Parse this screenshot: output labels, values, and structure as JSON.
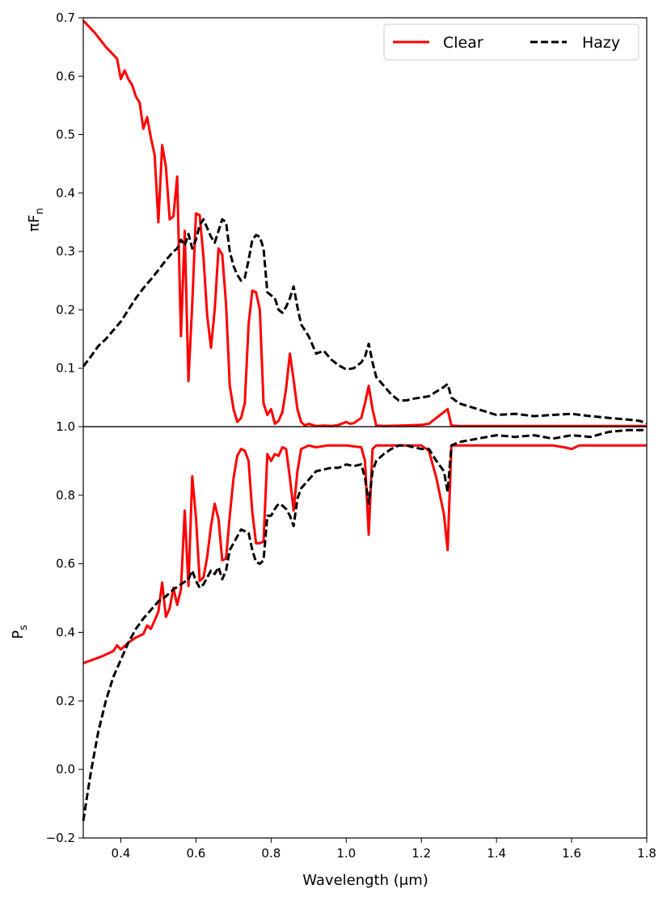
{
  "chart_data": [
    {
      "type": "line",
      "ylabel": "πF",
      "ylabel_sub": "n",
      "xlim": [
        0.3,
        1.8
      ],
      "ylim": [
        0.0,
        0.7
      ],
      "yticks": [
        "0.1",
        "0.2",
        "0.3",
        "0.4",
        "0.5",
        "0.6",
        "0.7"
      ],
      "ytick_values": [
        0.1,
        0.2,
        0.3,
        0.4,
        0.5,
        0.6,
        0.7
      ],
      "legend": "upper-right",
      "series": [
        {
          "name": "Clear",
          "color": "#ff0000",
          "style": "solid",
          "x": [
            0.3,
            0.33,
            0.36,
            0.39,
            0.4,
            0.41,
            0.42,
            0.43,
            0.44,
            0.45,
            0.46,
            0.47,
            0.48,
            0.49,
            0.5,
            0.51,
            0.52,
            0.53,
            0.54,
            0.55,
            0.56,
            0.57,
            0.58,
            0.59,
            0.6,
            0.61,
            0.62,
            0.63,
            0.64,
            0.65,
            0.66,
            0.67,
            0.68,
            0.69,
            0.7,
            0.71,
            0.72,
            0.73,
            0.74,
            0.75,
            0.76,
            0.77,
            0.78,
            0.79,
            0.8,
            0.81,
            0.82,
            0.83,
            0.84,
            0.85,
            0.86,
            0.87,
            0.88,
            0.89,
            0.9,
            0.92,
            0.94,
            0.96,
            0.98,
            1.0,
            1.01,
            1.02,
            1.04,
            1.05,
            1.06,
            1.07,
            1.08,
            1.1,
            1.2,
            1.22,
            1.27,
            1.28,
            1.3,
            1.4,
            1.6,
            1.8
          ],
          "y": [
            0.695,
            0.675,
            0.65,
            0.63,
            0.595,
            0.61,
            0.595,
            0.585,
            0.565,
            0.555,
            0.51,
            0.53,
            0.495,
            0.465,
            0.35,
            0.482,
            0.445,
            0.355,
            0.36,
            0.428,
            0.155,
            0.335,
            0.078,
            0.21,
            0.365,
            0.362,
            0.29,
            0.19,
            0.135,
            0.2,
            0.305,
            0.295,
            0.21,
            0.07,
            0.03,
            0.008,
            0.015,
            0.04,
            0.175,
            0.233,
            0.23,
            0.2,
            0.04,
            0.02,
            0.03,
            0.005,
            0.01,
            0.025,
            0.065,
            0.125,
            0.08,
            0.03,
            0.008,
            0.002,
            0.005,
            0.001,
            0.002,
            0.001,
            0.003,
            0.008,
            0.005,
            0.006,
            0.015,
            0.04,
            0.07,
            0.03,
            0.002,
            0.001,
            0.003,
            0.005,
            0.03,
            0.002,
            0.001,
            0.001,
            0.001,
            0.001
          ]
        },
        {
          "name": "Hazy",
          "color": "#000000",
          "style": "dashed",
          "x": [
            0.3,
            0.32,
            0.34,
            0.36,
            0.38,
            0.4,
            0.42,
            0.44,
            0.46,
            0.48,
            0.5,
            0.52,
            0.54,
            0.55,
            0.56,
            0.57,
            0.58,
            0.59,
            0.6,
            0.61,
            0.62,
            0.63,
            0.64,
            0.65,
            0.66,
            0.67,
            0.68,
            0.69,
            0.7,
            0.71,
            0.72,
            0.73,
            0.74,
            0.75,
            0.76,
            0.77,
            0.78,
            0.79,
            0.8,
            0.81,
            0.82,
            0.83,
            0.84,
            0.85,
            0.86,
            0.87,
            0.88,
            0.89,
            0.9,
            0.92,
            0.94,
            0.96,
            0.98,
            1.0,
            1.02,
            1.04,
            1.05,
            1.06,
            1.07,
            1.08,
            1.1,
            1.12,
            1.14,
            1.16,
            1.18,
            1.2,
            1.22,
            1.24,
            1.26,
            1.27,
            1.28,
            1.3,
            1.35,
            1.4,
            1.45,
            1.5,
            1.55,
            1.6,
            1.65,
            1.7,
            1.75,
            1.78,
            1.8
          ],
          "y": [
            0.103,
            0.12,
            0.138,
            0.15,
            0.165,
            0.18,
            0.2,
            0.22,
            0.237,
            0.252,
            0.268,
            0.285,
            0.3,
            0.305,
            0.32,
            0.31,
            0.33,
            0.305,
            0.32,
            0.345,
            0.355,
            0.34,
            0.325,
            0.315,
            0.335,
            0.355,
            0.35,
            0.3,
            0.275,
            0.26,
            0.25,
            0.255,
            0.285,
            0.32,
            0.328,
            0.325,
            0.305,
            0.23,
            0.225,
            0.22,
            0.2,
            0.195,
            0.205,
            0.22,
            0.24,
            0.205,
            0.175,
            0.165,
            0.155,
            0.125,
            0.13,
            0.115,
            0.105,
            0.098,
            0.1,
            0.11,
            0.12,
            0.142,
            0.11,
            0.085,
            0.07,
            0.055,
            0.045,
            0.045,
            0.048,
            0.05,
            0.052,
            0.06,
            0.068,
            0.073,
            0.05,
            0.04,
            0.03,
            0.02,
            0.022,
            0.018,
            0.02,
            0.022,
            0.018,
            0.015,
            0.012,
            0.01,
            0.006
          ]
        }
      ]
    },
    {
      "type": "line",
      "xlabel": "Wavelength (μm)",
      "ylabel": "P",
      "ylabel_sub": "s",
      "xlim": [
        0.3,
        1.8
      ],
      "ylim": [
        -0.2,
        1.0
      ],
      "xticks": [
        "0.4",
        "0.6",
        "0.8",
        "1.0",
        "1.2",
        "1.4",
        "1.6",
        "1.8"
      ],
      "xtick_values": [
        0.4,
        0.6,
        0.8,
        1.0,
        1.2,
        1.4,
        1.6,
        1.8
      ],
      "yticks": [
        "−0.2",
        "0.0",
        "0.2",
        "0.4",
        "0.6",
        "0.8",
        "1.0"
      ],
      "ytick_values": [
        -0.2,
        0.0,
        0.2,
        0.4,
        0.6,
        0.8,
        1.0
      ],
      "series": [
        {
          "name": "Clear",
          "color": "#ff0000",
          "style": "solid",
          "x": [
            0.3,
            0.35,
            0.38,
            0.39,
            0.4,
            0.41,
            0.42,
            0.44,
            0.46,
            0.47,
            0.48,
            0.49,
            0.5,
            0.51,
            0.52,
            0.53,
            0.54,
            0.55,
            0.56,
            0.57,
            0.58,
            0.59,
            0.6,
            0.61,
            0.62,
            0.63,
            0.64,
            0.65,
            0.66,
            0.67,
            0.68,
            0.69,
            0.7,
            0.71,
            0.72,
            0.73,
            0.74,
            0.75,
            0.76,
            0.77,
            0.78,
            0.79,
            0.8,
            0.81,
            0.82,
            0.83,
            0.84,
            0.85,
            0.86,
            0.87,
            0.88,
            0.9,
            0.92,
            0.95,
            1.0,
            1.04,
            1.05,
            1.06,
            1.07,
            1.08,
            1.1,
            1.2,
            1.22,
            1.24,
            1.26,
            1.27,
            1.28,
            1.3,
            1.5,
            1.55,
            1.58,
            1.6,
            1.62,
            1.65,
            1.8
          ],
          "y": [
            0.31,
            0.33,
            0.345,
            0.362,
            0.35,
            0.36,
            0.37,
            0.385,
            0.395,
            0.42,
            0.41,
            0.435,
            0.46,
            0.545,
            0.445,
            0.47,
            0.53,
            0.48,
            0.525,
            0.755,
            0.535,
            0.855,
            0.735,
            0.55,
            0.56,
            0.62,
            0.71,
            0.775,
            0.73,
            0.61,
            0.615,
            0.74,
            0.85,
            0.915,
            0.935,
            0.93,
            0.9,
            0.75,
            0.66,
            0.66,
            0.665,
            0.92,
            0.9,
            0.92,
            0.915,
            0.94,
            0.935,
            0.85,
            0.755,
            0.87,
            0.935,
            0.945,
            0.94,
            0.945,
            0.945,
            0.94,
            0.9,
            0.685,
            0.935,
            0.945,
            0.945,
            0.945,
            0.93,
            0.85,
            0.745,
            0.64,
            0.945,
            0.945,
            0.945,
            0.945,
            0.94,
            0.935,
            0.945,
            0.945,
            0.945
          ]
        },
        {
          "name": "Hazy",
          "color": "#000000",
          "style": "dashed",
          "x": [
            0.3,
            0.31,
            0.32,
            0.33,
            0.34,
            0.36,
            0.38,
            0.4,
            0.42,
            0.44,
            0.46,
            0.48,
            0.5,
            0.52,
            0.54,
            0.56,
            0.58,
            0.59,
            0.6,
            0.61,
            0.62,
            0.63,
            0.64,
            0.65,
            0.66,
            0.67,
            0.68,
            0.69,
            0.7,
            0.72,
            0.74,
            0.75,
            0.76,
            0.77,
            0.78,
            0.79,
            0.8,
            0.81,
            0.82,
            0.83,
            0.84,
            0.85,
            0.86,
            0.87,
            0.88,
            0.9,
            0.92,
            0.94,
            0.96,
            0.98,
            1.0,
            1.02,
            1.04,
            1.05,
            1.06,
            1.07,
            1.08,
            1.1,
            1.12,
            1.14,
            1.16,
            1.18,
            1.2,
            1.22,
            1.24,
            1.26,
            1.27,
            1.28,
            1.3,
            1.35,
            1.4,
            1.45,
            1.5,
            1.55,
            1.6,
            1.65,
            1.7,
            1.75,
            1.8
          ],
          "y": [
            -0.15,
            -0.08,
            -0.01,
            0.05,
            0.11,
            0.2,
            0.27,
            0.32,
            0.37,
            0.41,
            0.44,
            0.465,
            0.49,
            0.505,
            0.525,
            0.54,
            0.555,
            0.58,
            0.55,
            0.53,
            0.54,
            0.56,
            0.58,
            0.57,
            0.59,
            0.555,
            0.58,
            0.64,
            0.66,
            0.7,
            0.69,
            0.64,
            0.605,
            0.6,
            0.61,
            0.74,
            0.74,
            0.76,
            0.775,
            0.77,
            0.76,
            0.74,
            0.71,
            0.79,
            0.82,
            0.845,
            0.87,
            0.875,
            0.88,
            0.88,
            0.89,
            0.885,
            0.89,
            0.85,
            0.775,
            0.87,
            0.9,
            0.92,
            0.935,
            0.945,
            0.945,
            0.94,
            0.935,
            0.935,
            0.9,
            0.87,
            0.81,
            0.945,
            0.955,
            0.965,
            0.975,
            0.97,
            0.975,
            0.965,
            0.975,
            0.97,
            0.985,
            0.99,
            0.99
          ]
        }
      ]
    }
  ]
}
